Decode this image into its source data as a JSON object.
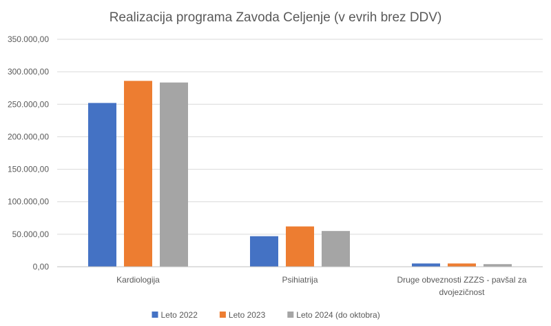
{
  "chart_data": {
    "type": "bar",
    "title": "Realizacija programa Zavoda Celjenje (v evrih brez DDV)",
    "categories": [
      [
        "Kardiologija"
      ],
      [
        "Psihiatrija"
      ],
      [
        "Druge obveznosti ZZZS - pavšal za",
        "dvojezičnost"
      ]
    ],
    "series": [
      {
        "name": "Leto 2022",
        "color": "#4472C4",
        "values": [
          252000,
          47000,
          5000
        ]
      },
      {
        "name": "Leto 2023",
        "color": "#ED7D31",
        "values": [
          286000,
          62000,
          5000
        ]
      },
      {
        "name": "Leto 2024 (do oktobra)",
        "color": "#A5A5A5",
        "values": [
          283500,
          55000,
          4000
        ]
      }
    ],
    "ylim": [
      0,
      350000
    ],
    "yticks": [
      0,
      50000,
      100000,
      150000,
      200000,
      250000,
      300000,
      350000
    ],
    "ytick_labels": [
      "0,00",
      "50.000,00",
      "100.000,00",
      "150.000,00",
      "200.000,00",
      "250.000,00",
      "300.000,00",
      "350.000,00"
    ],
    "xlabel": "",
    "ylabel": "",
    "grid": true,
    "legend_position": "bottom"
  }
}
